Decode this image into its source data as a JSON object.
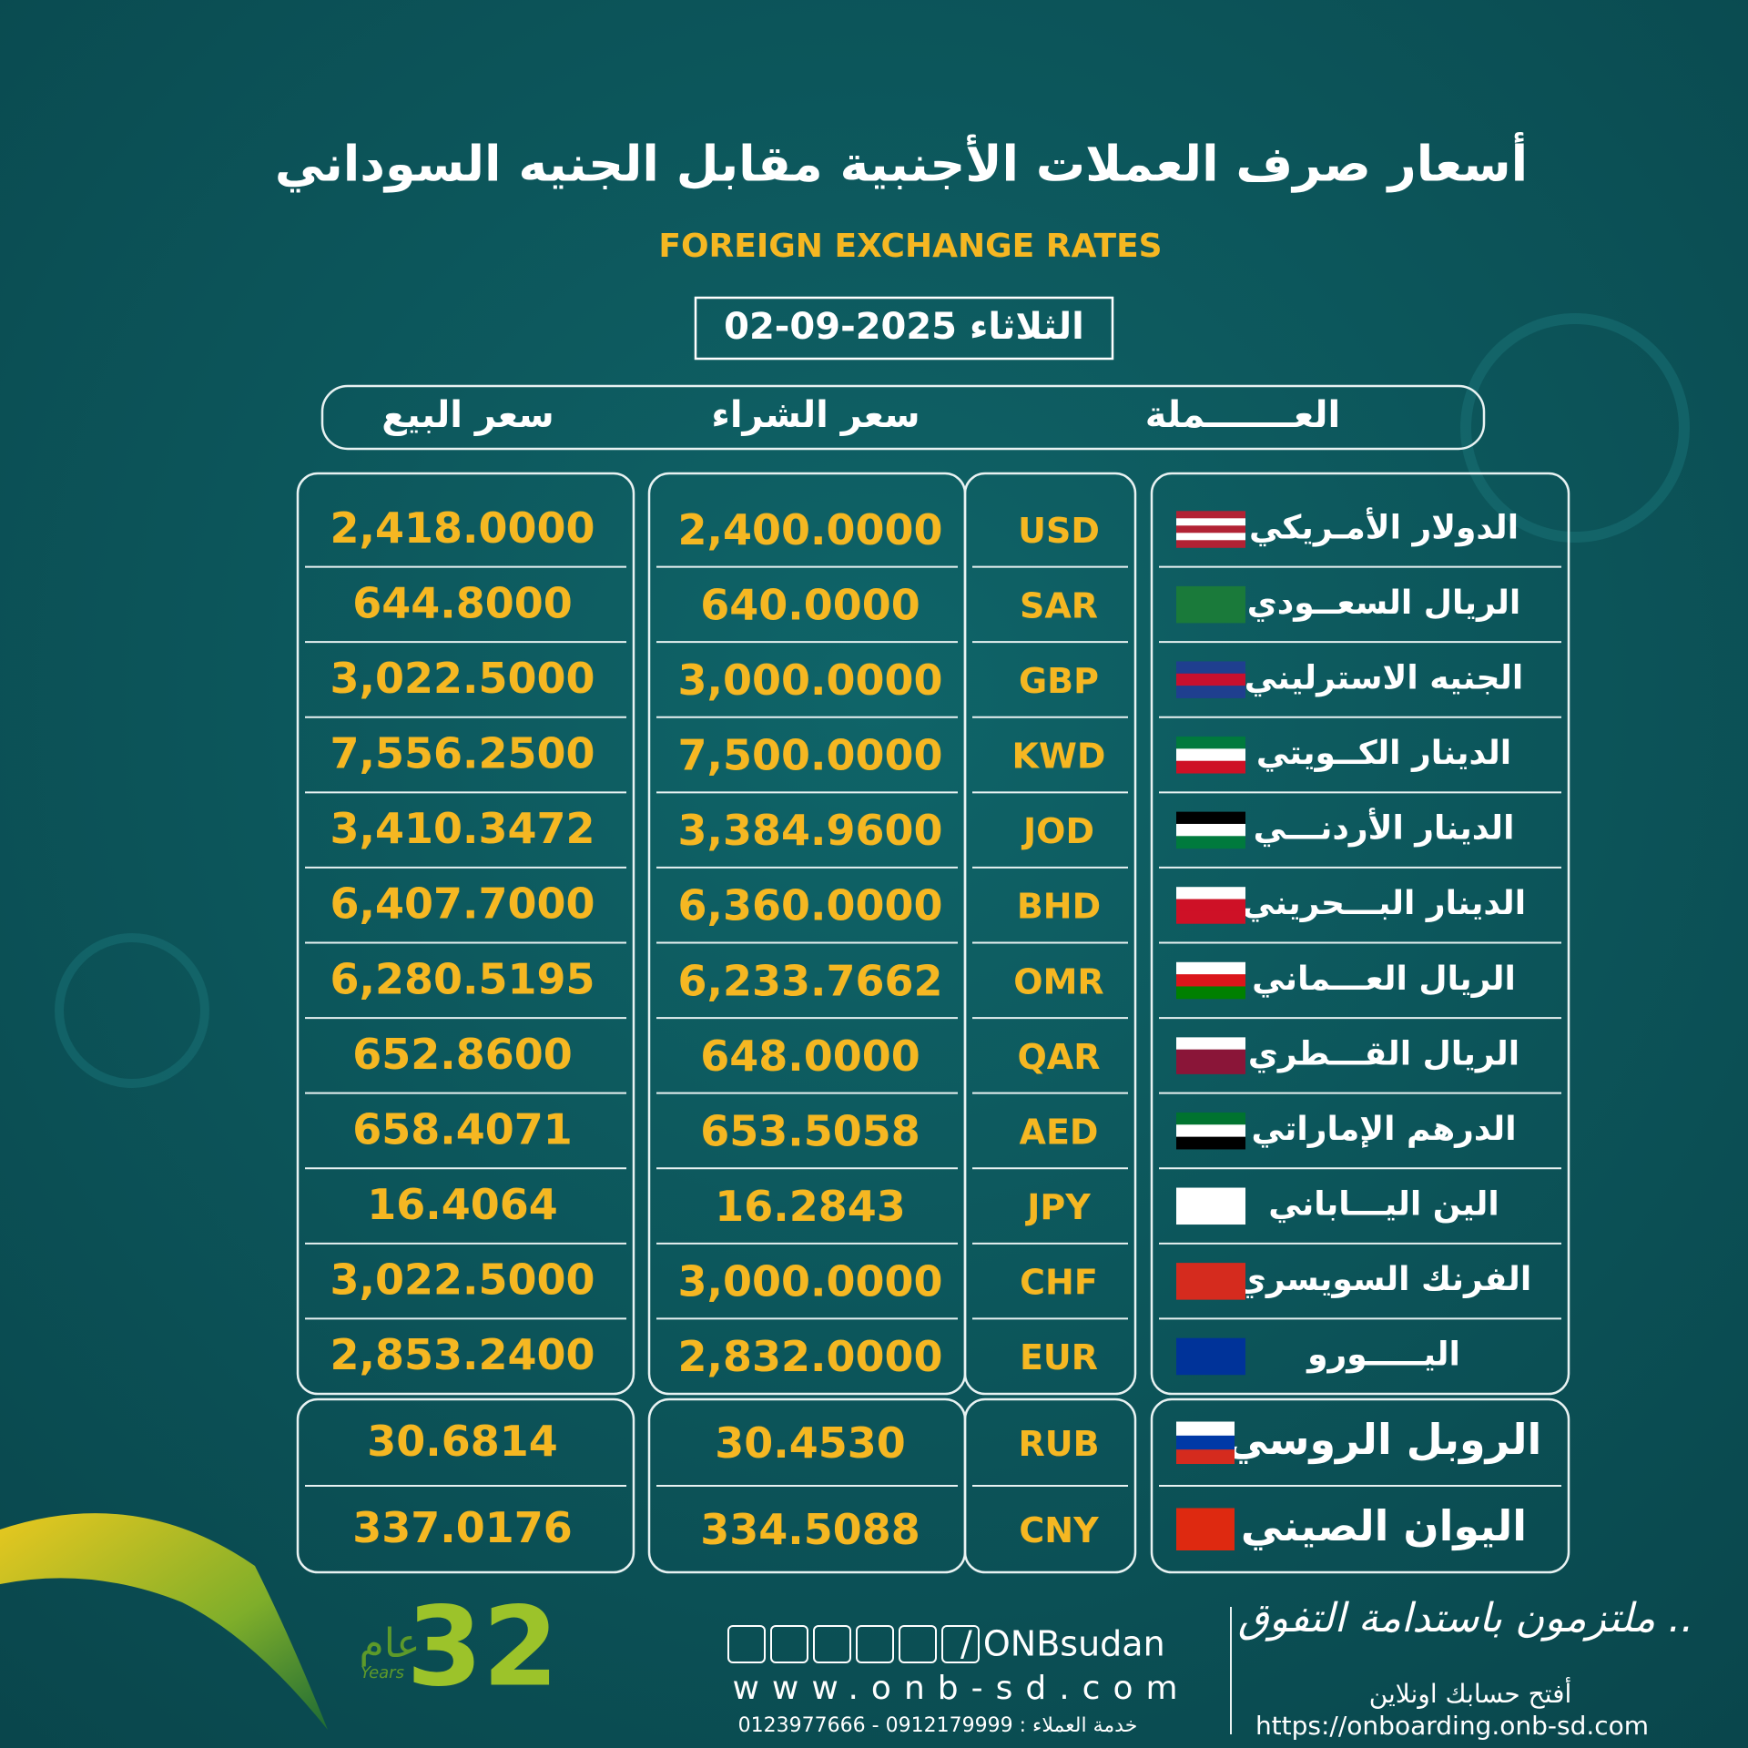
{
  "header": {
    "title": "أسعار صرف العملات الأجنبية مقابل الجنيه السوداني",
    "subtitle": "FOREIGN EXCHANGE RATES",
    "date": "الثلاثاء 2025-09-02"
  },
  "table": {
    "headers": [
      "سعر البيع",
      "سعر الشراء",
      "العـــــــملة"
    ],
    "rows": [
      [
        "الدولار الأمـريكي",
        "USD",
        "2,400.0000",
        "2,418.0000"
      ],
      [
        "الريال السعــودي",
        "SAR",
        "640.0000",
        "644.8000"
      ],
      [
        "الجنيه الاسترليني",
        "GBP",
        "3,000.0000",
        "3,022.5000"
      ],
      [
        "الدينار الكــويتي",
        "KWD",
        "7,500.0000",
        "7,556.2500"
      ],
      [
        "الدينار الأردنـــي",
        "JOD",
        "3,384.9600",
        "3,410.3472"
      ],
      [
        "الدينار البـــحريني",
        "BHD",
        "6,360.0000",
        "6,407.7000"
      ],
      [
        "الريال العـــماني",
        "OMR",
        "6,233.7662",
        "6,280.5195"
      ],
      [
        "الريال القـــطري",
        "QAR",
        "648.0000",
        "652.8600"
      ],
      [
        "الدرهم الإماراتي",
        "AED",
        "653.5058",
        "658.4071"
      ],
      [
        "الين اليـــاباني",
        "JPY",
        "16.2843",
        "16.4064"
      ],
      [
        "الفرنك السويسري",
        "CHF",
        "3,000.0000",
        "3,022.5000"
      ],
      [
        "اليـــــورو",
        "EUR",
        "2,832.0000",
        "2,853.2400"
      ],
      [
        "الروبل الروسي",
        "RUB",
        "30.4530",
        "30.6814"
      ],
      [
        "اليوان الصيني",
        "CNY",
        "334.5088",
        "337.0176"
      ]
    ]
  },
  "footer": {
    "anniversary": "32",
    "anniversary_word": "عام",
    "anniversary_en": "Years",
    "social": "/ ONBsudan",
    "website": "www.onb-sd.com",
    "phones": "خدمة العملاء : 0912179999 - 0123977666",
    "slogan": "ملتزمون باستدامة التفوق ..",
    "open_account": "أفتح حسابك اونلاين",
    "onboarding_url": "https://onboarding.onb-sd.com"
  }
}
